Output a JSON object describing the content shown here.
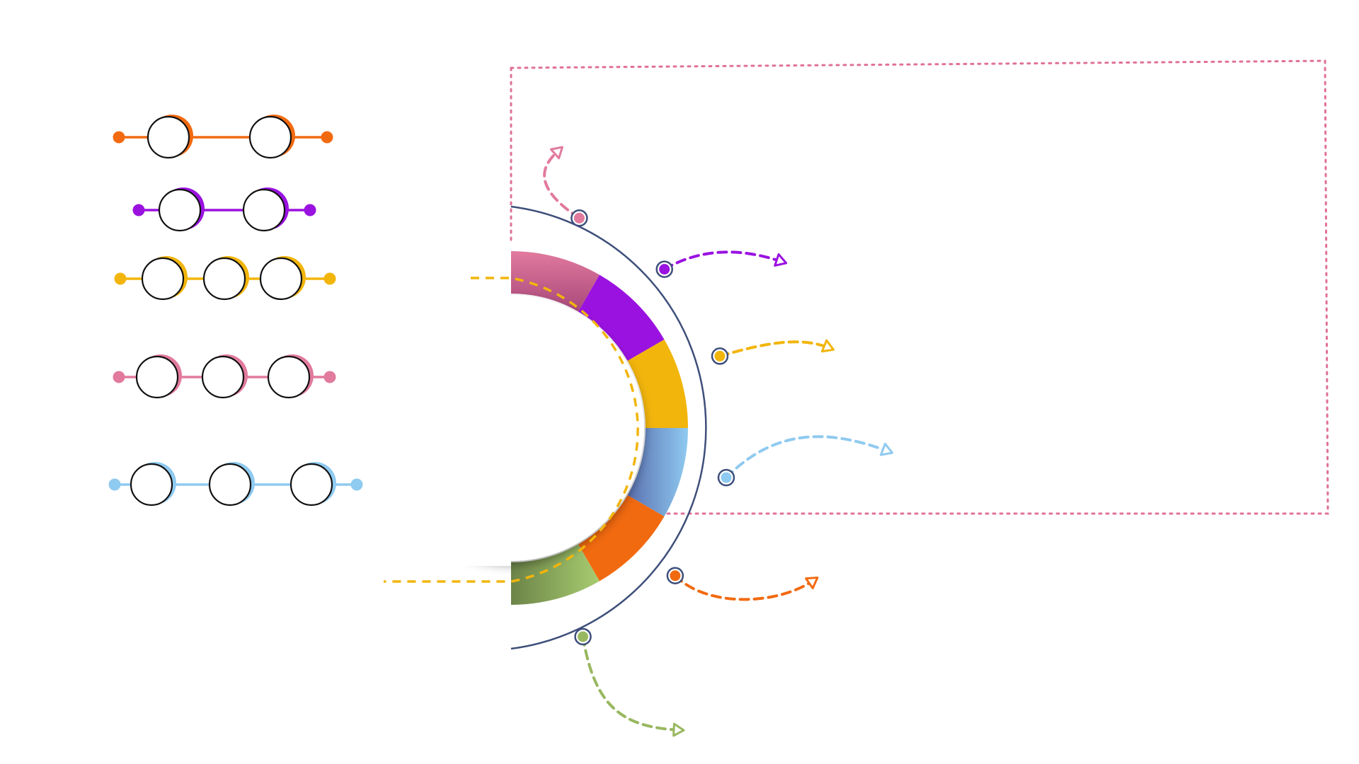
{
  "palette": {
    "orange": "#f26a10",
    "purple": "#9a12e0",
    "yellow": "#f2b50c",
    "pink": "#e27a9e",
    "blue": "#8fcaf0",
    "green": "#98b860",
    "navy": "#3e4f7a",
    "frame": "#e0709a"
  },
  "chains": [
    {
      "color": "orange",
      "nodes": 2
    },
    {
      "color": "purple",
      "nodes": 2
    },
    {
      "color": "yellow",
      "nodes": 3
    },
    {
      "color": "pink",
      "nodes": 3
    },
    {
      "color": "blue",
      "nodes": 3
    }
  ],
  "ring_segments": [
    "pink",
    "purple",
    "yellow",
    "blue",
    "orange",
    "green"
  ],
  "outer_arc_dots": [
    "pink",
    "purple",
    "yellow",
    "blue",
    "orange",
    "green"
  ],
  "dashed_arrows": [
    "pink",
    "purple",
    "yellow",
    "blue",
    "orange",
    "green"
  ],
  "icons": {
    "arrow_head": "open-triangle-arrowhead-icon"
  }
}
